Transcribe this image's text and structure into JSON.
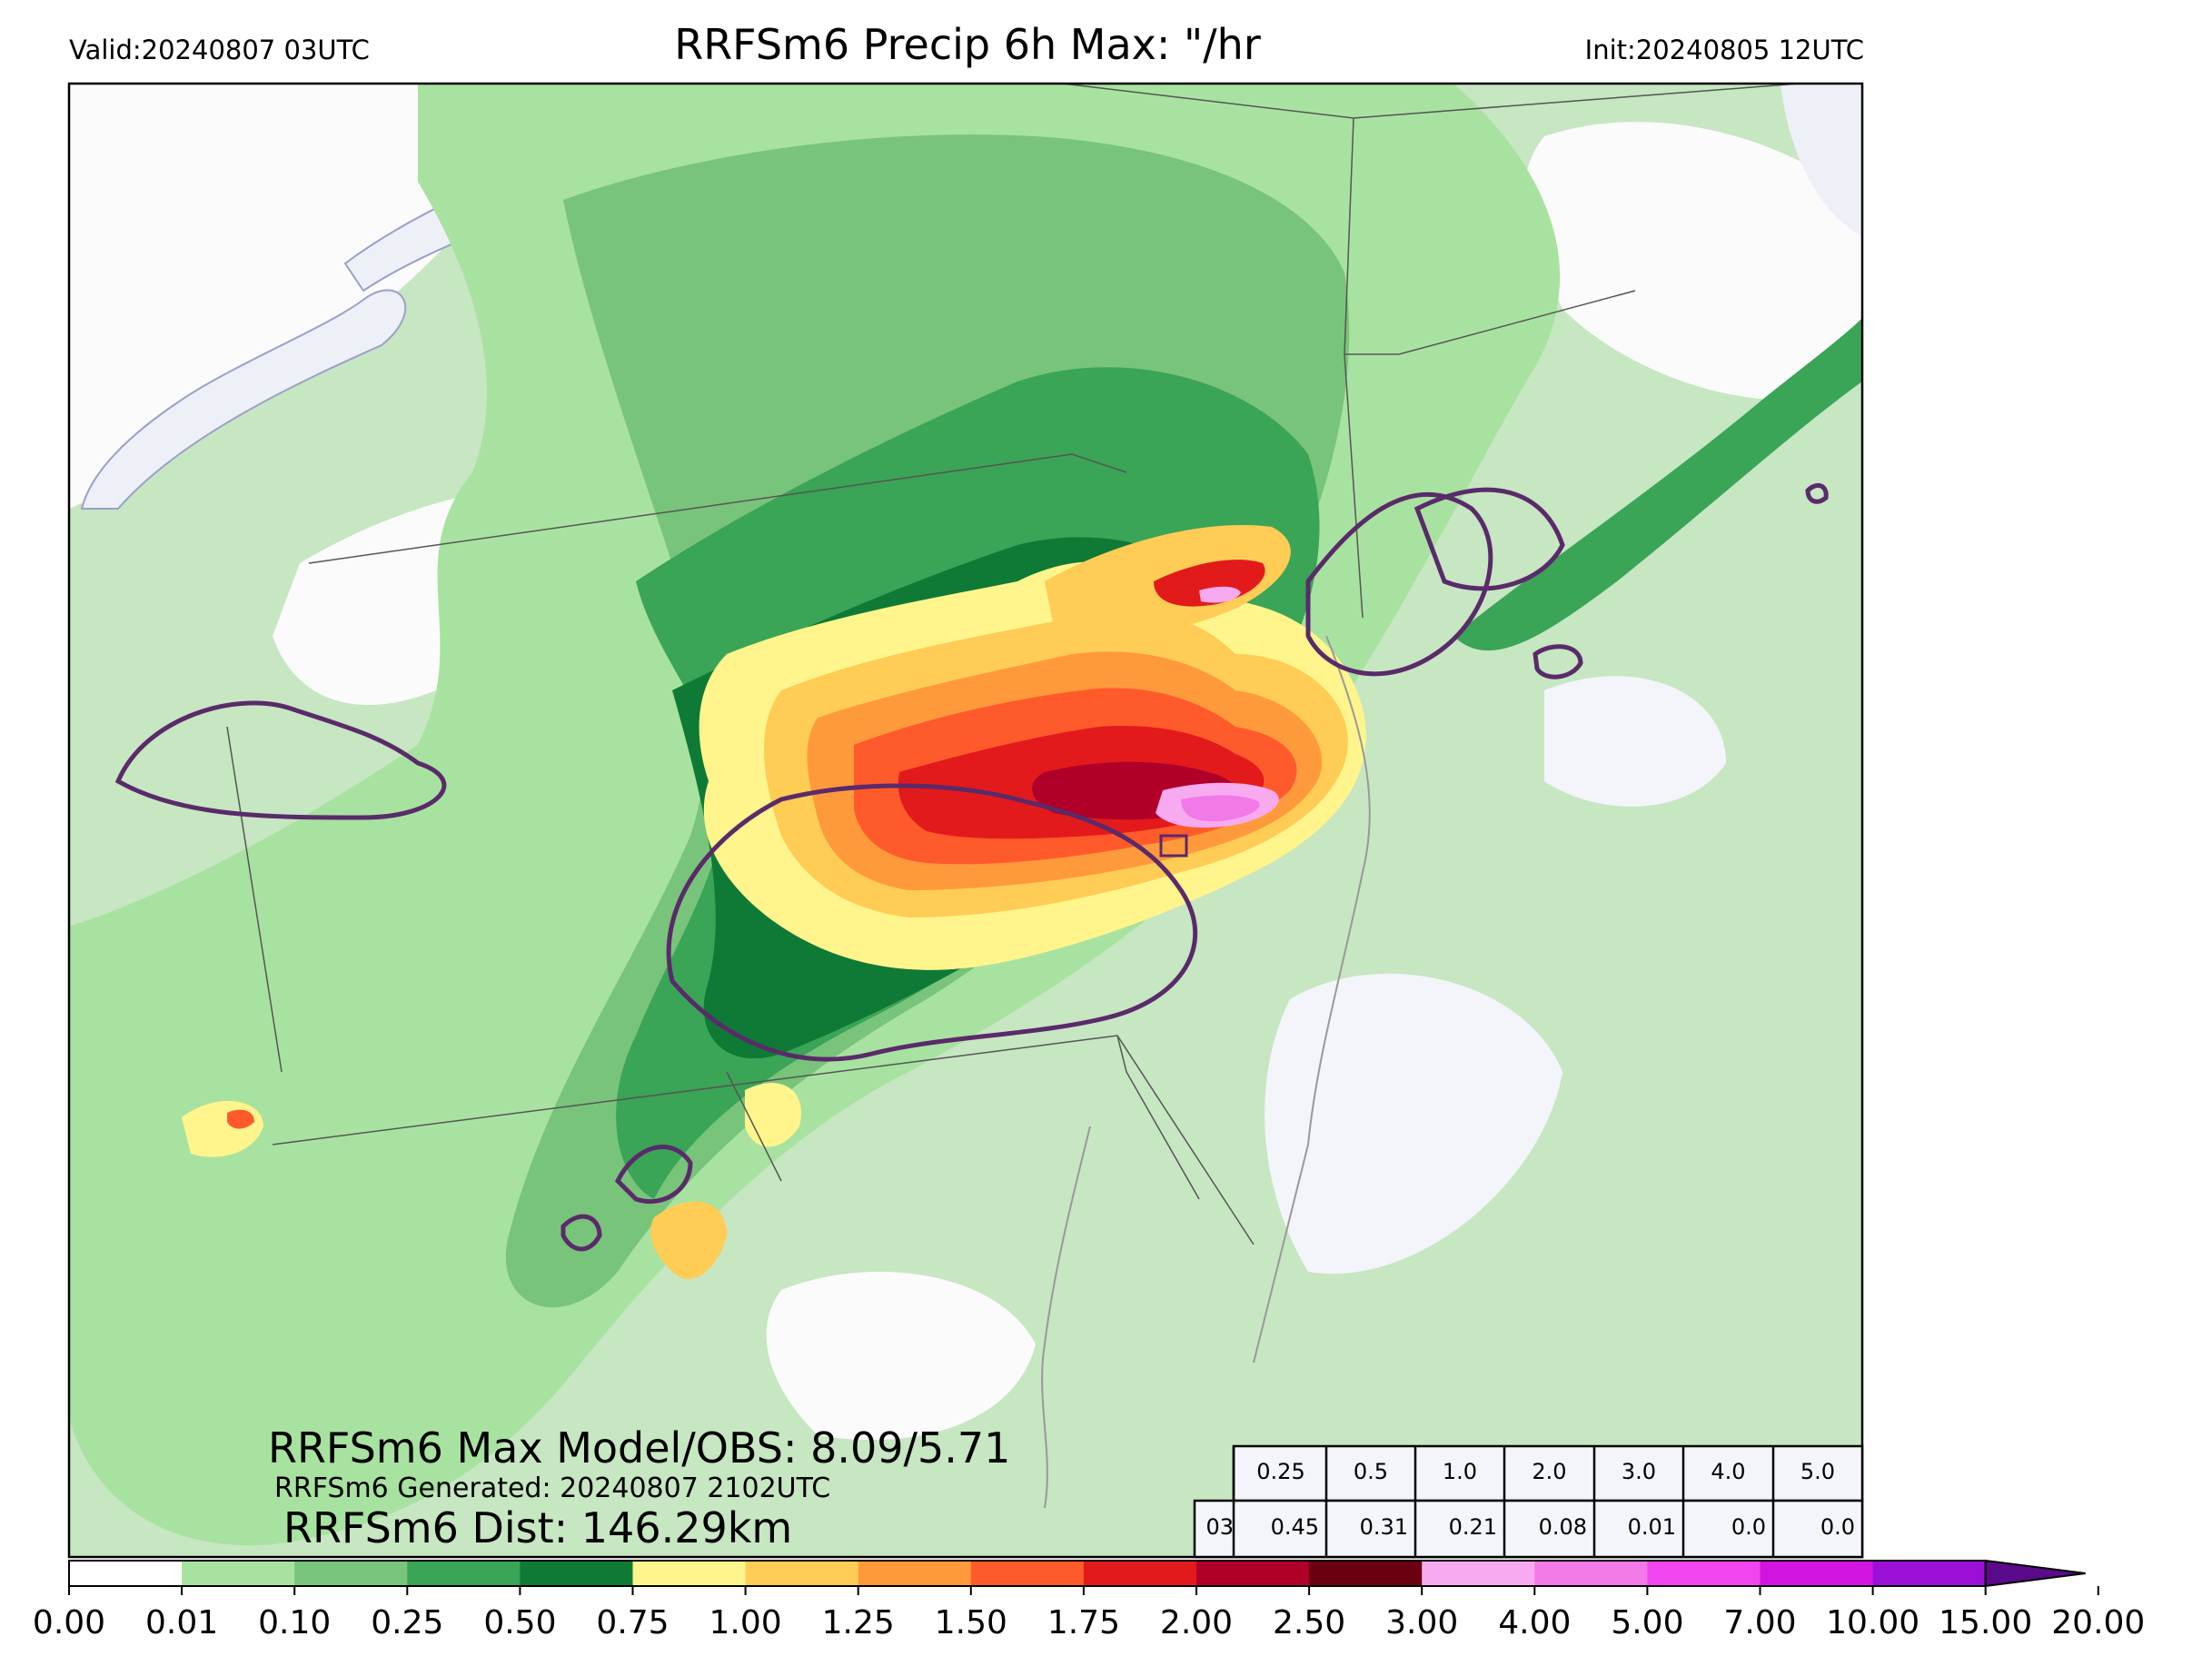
{
  "header": {
    "valid": "Valid:20240807 03UTC",
    "title": "RRFSm6 Precip 6h Max: \"/hr",
    "init": "Init:20240805 12UTC"
  },
  "stats": {
    "max_model_obs": "RRFSm6 Max Model/OBS: 8.09/5.71",
    "generated": "RRFSm6 Generated: 20240807 2102UTC",
    "distance": "RRFSm6 Dist: 146.29km"
  },
  "threshold_table": {
    "thresholds": [
      "0.25",
      "0.5",
      "1.0",
      "2.0",
      "3.0",
      "4.0",
      "5.0"
    ],
    "row_label": "03",
    "values": [
      "0.45",
      "0.31",
      "0.21",
      "0.08",
      "0.01",
      "0.0",
      "0.0"
    ]
  },
  "colorbar": {
    "ticks": [
      "0.00",
      "0.01",
      "0.10",
      "0.25",
      "0.50",
      "0.75",
      "1.00",
      "1.25",
      "1.50",
      "1.75",
      "2.00",
      "2.50",
      "3.00",
      "4.00",
      "5.00",
      "7.00",
      "10.00",
      "15.00",
      "20.00"
    ],
    "colors": [
      "#ffffff",
      "#a8e2a0",
      "#78c47a",
      "#3aa457",
      "#0e7a36",
      "#fff58c",
      "#ffcc55",
      "#ff9a3c",
      "#ff5a2c",
      "#e31a1c",
      "#b0002a",
      "#6a0010",
      "#f8aaf0",
      "#f27ae8",
      "#f046f0",
      "#d214e0",
      "#9a10d6"
    ],
    "extend_color": "#5a0a8a"
  },
  "colors": {
    "outline_contour": "#5a2a6a",
    "water": "#eef0f8",
    "boundary": "#555555"
  }
}
